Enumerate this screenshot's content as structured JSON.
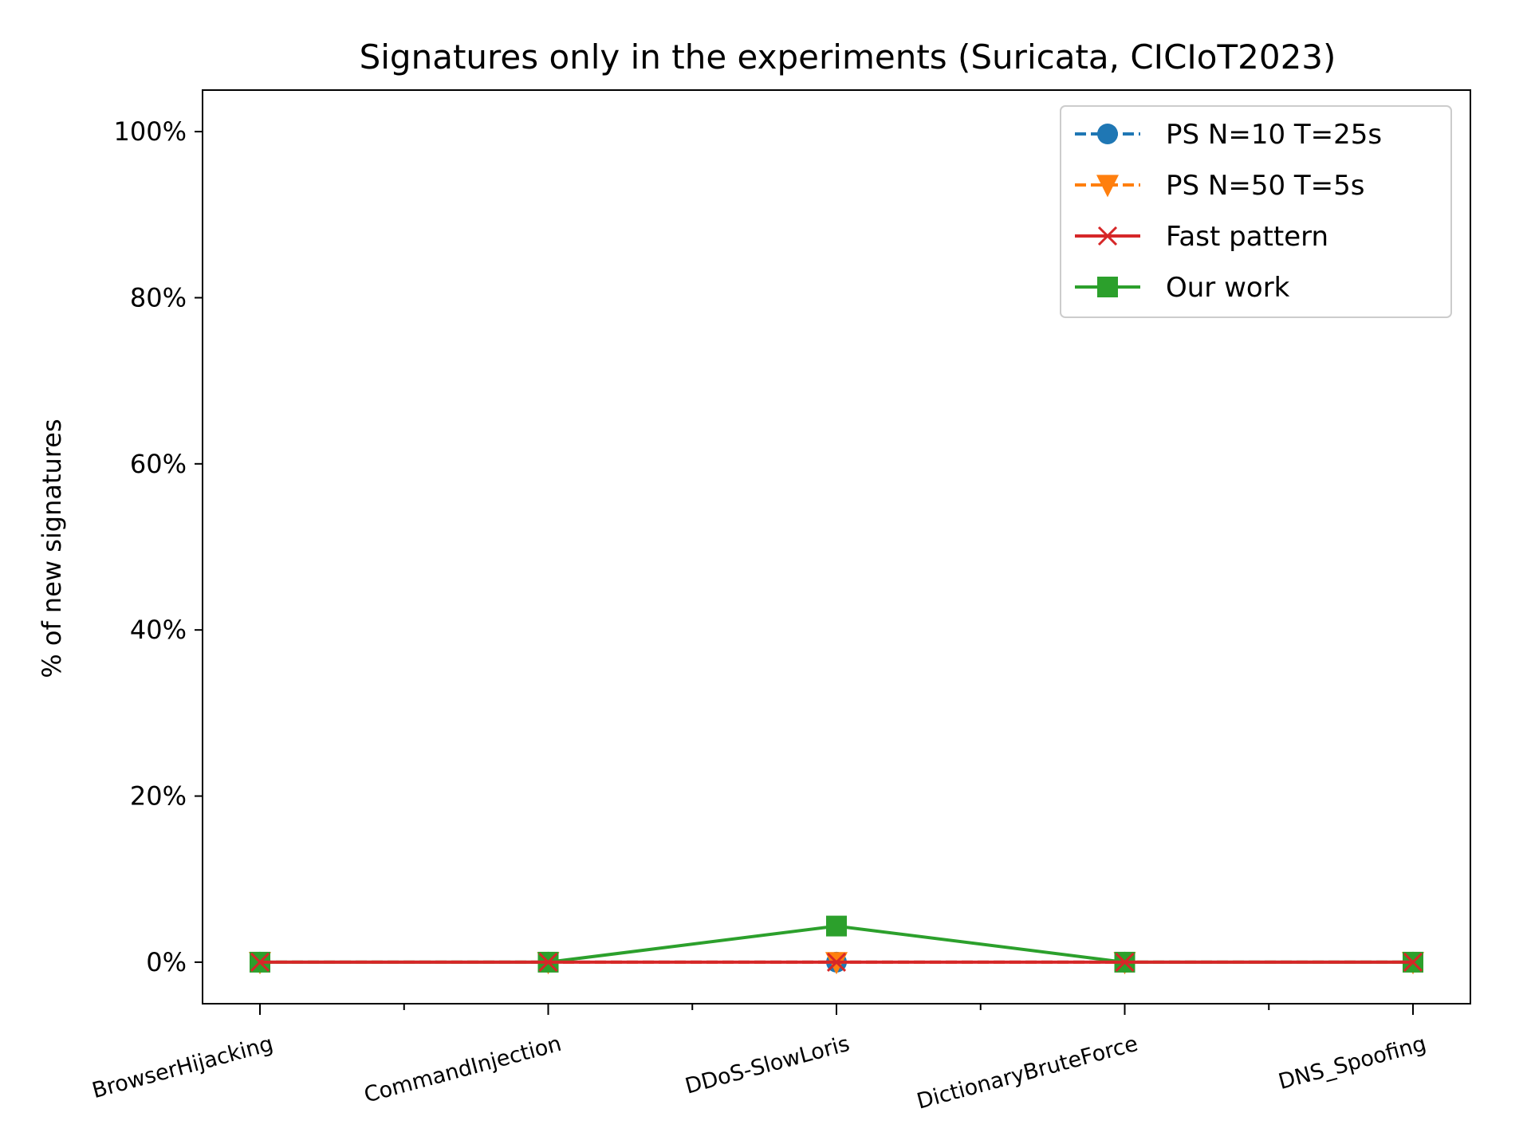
{
  "chart_data": {
    "type": "line",
    "title": "Signatures only in the experiments (Suricata, CICIoT2023)",
    "ylabel": "% of new signatures",
    "xlabel": "",
    "categories": [
      "BrowserHijacking",
      "CommandInjection",
      "DDoS-SlowLoris",
      "DictionaryBruteForce",
      "DNS_Spoofing"
    ],
    "ylim": [
      -5,
      105
    ],
    "yticks": [
      0,
      20,
      40,
      60,
      80,
      100
    ],
    "ytick_labels": [
      "0%",
      "20%",
      "40%",
      "60%",
      "80%",
      "100%"
    ],
    "grid": false,
    "legend_position": "top-right",
    "series": [
      {
        "name": "PS N=10 T=25s",
        "values": [
          0,
          0,
          0,
          0,
          0
        ],
        "color": "#1f77b4",
        "marker": "circle",
        "linestyle": "dashed"
      },
      {
        "name": "PS N=50 T=5s",
        "values": [
          0,
          0,
          0,
          0,
          0
        ],
        "color": "#ff7f0e",
        "marker": "triangle-down",
        "linestyle": "dashed"
      },
      {
        "name": "Our work",
        "values": [
          0,
          0,
          4.35,
          0,
          0
        ],
        "color": "#2ca02c",
        "marker": "square",
        "linestyle": "solid"
      },
      {
        "name": "Fast pattern",
        "values": [
          0,
          0,
          0,
          0,
          0
        ],
        "color": "#d62728",
        "marker": "x",
        "linestyle": "solid"
      }
    ],
    "legend_order": [
      "PS N=10 T=25s",
      "PS N=50 T=5s",
      "Fast pattern",
      "Our work"
    ]
  }
}
